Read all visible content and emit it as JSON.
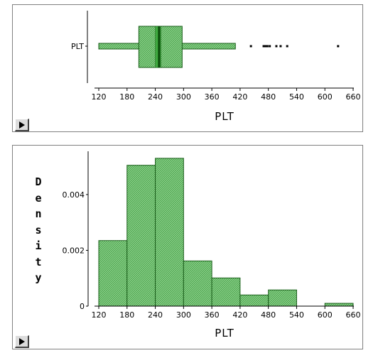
{
  "boxplot_panel": {
    "category_label": "PLT",
    "x_title": "PLT"
  },
  "histogram_panel": {
    "x_title": "PLT",
    "y_title": "Density",
    "y_title_letters": [
      "D",
      "e",
      "n",
      "s",
      "i",
      "t",
      "y"
    ]
  },
  "colors": {
    "fill": "#8fd48f",
    "hatch": "#2e8b2e",
    "outline": "#1a5e1a",
    "median": "#0a4a0a",
    "axis": "#000000"
  },
  "chart_data": [
    {
      "type": "box",
      "category": "PLT",
      "xlabel": "PLT",
      "xlim": [
        100,
        660
      ],
      "x_ticks": [
        120,
        180,
        240,
        300,
        360,
        420,
        480,
        540,
        600,
        660
      ],
      "whisker_low": 120,
      "q1": 205,
      "median": 248,
      "q3": 297,
      "whisker_high": 410,
      "notch_low": 240,
      "notch_high": 252,
      "outliers": [
        443,
        470,
        474,
        478,
        483,
        497,
        506,
        520,
        628
      ]
    },
    {
      "type": "bar",
      "subtype": "histogram",
      "xlabel": "PLT",
      "ylabel": "Density",
      "xlim": [
        100,
        660
      ],
      "ylim": [
        0,
        0.0055
      ],
      "x_ticks": [
        120,
        180,
        240,
        300,
        360,
        420,
        480,
        540,
        600,
        660
      ],
      "y_ticks": [
        0,
        0.002,
        0.004
      ],
      "y_tick_labels": [
        "0",
        "0.002",
        "0.004"
      ],
      "bin_edges": [
        120,
        180,
        240,
        300,
        360,
        420,
        480,
        540,
        600,
        660
      ],
      "values": [
        0.00235,
        0.00505,
        0.0053,
        0.00162,
        0.00101,
        0.0004,
        0.00058,
        0.0,
        0.0001
      ]
    }
  ]
}
